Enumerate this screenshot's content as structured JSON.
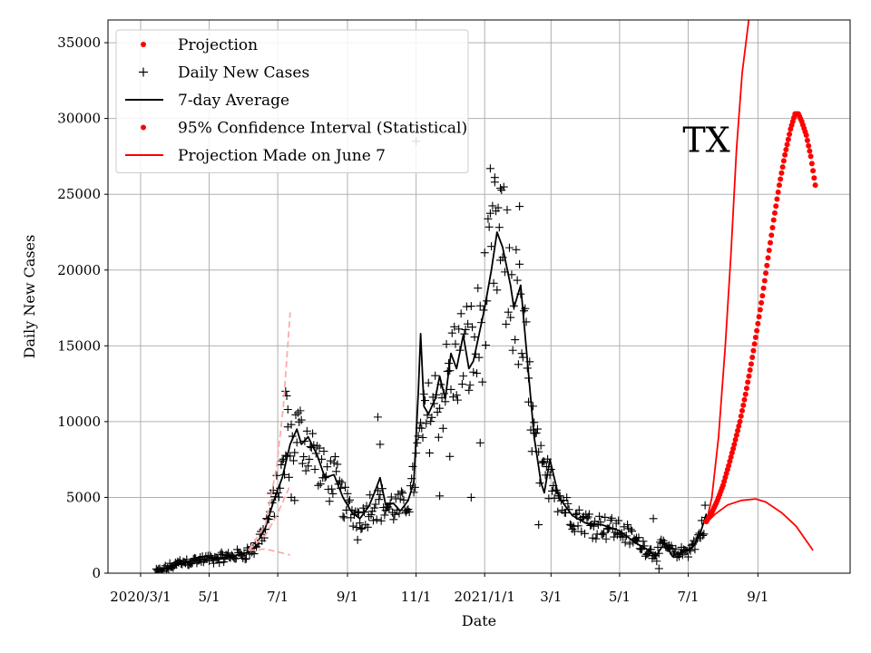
{
  "chart_data": {
    "type": "scatter",
    "xlabel": "Date",
    "ylabel": "Daily New Cases",
    "annotation": "TX",
    "xlim": [
      "2020-02-01",
      "2021-11-22"
    ],
    "ylim": [
      0,
      36500
    ],
    "grid": true,
    "legend_position": "top-left",
    "x_ticks": [
      {
        "date": "2020-03-01",
        "label": "2020/3/1"
      },
      {
        "date": "2020-05-01",
        "label": "5/1"
      },
      {
        "date": "2020-07-01",
        "label": "7/1"
      },
      {
        "date": "2020-09-01",
        "label": "9/1"
      },
      {
        "date": "2020-11-01",
        "label": "11/1"
      },
      {
        "date": "2021-01-01",
        "label": "2021/1/1"
      },
      {
        "date": "2021-03-01",
        "label": "3/1"
      },
      {
        "date": "2021-05-01",
        "label": "5/1"
      },
      {
        "date": "2021-07-01",
        "label": "7/1"
      },
      {
        "date": "2021-09-01",
        "label": "9/1"
      }
    ],
    "y_ticks": [
      0,
      5000,
      10000,
      15000,
      20000,
      25000,
      30000,
      35000
    ],
    "legend": [
      {
        "label": "Projection",
        "marker": "dot",
        "color": "#ff0000"
      },
      {
        "label": "Daily New Cases",
        "marker": "plus",
        "color": "#000000"
      },
      {
        "label": "7-day Average",
        "marker": "line",
        "color": "#000000"
      },
      {
        "label": "95% Confidence Interval (Statistical)",
        "marker": "dot",
        "color": "#ff0000"
      },
      {
        "label": "Projection Made on June 7",
        "marker": "line",
        "color": "#ff0000"
      }
    ],
    "series": [
      {
        "name": "7-day Average",
        "color": "#000000",
        "points": [
          [
            "2020-03-14",
            20
          ],
          [
            "2020-03-25",
            350
          ],
          [
            "2020-04-05",
            700
          ],
          [
            "2020-04-20",
            850
          ],
          [
            "2020-05-05",
            950
          ],
          [
            "2020-05-20",
            1100
          ],
          [
            "2020-06-01",
            1300
          ],
          [
            "2020-06-10",
            1600
          ],
          [
            "2020-06-20",
            3000
          ],
          [
            "2020-06-28",
            4900
          ],
          [
            "2020-07-05",
            6300
          ],
          [
            "2020-07-12",
            8500
          ],
          [
            "2020-07-18",
            9500
          ],
          [
            "2020-07-22",
            8500
          ],
          [
            "2020-07-28",
            9000
          ],
          [
            "2020-08-05",
            7800
          ],
          [
            "2020-08-12",
            6300
          ],
          [
            "2020-08-20",
            6500
          ],
          [
            "2020-08-28",
            5000
          ],
          [
            "2020-09-05",
            4000
          ],
          [
            "2020-09-12",
            3600
          ],
          [
            "2020-09-20",
            4400
          ],
          [
            "2020-09-26",
            5500
          ],
          [
            "2020-09-30",
            6300
          ],
          [
            "2020-10-05",
            4500
          ],
          [
            "2020-10-12",
            4600
          ],
          [
            "2020-10-18",
            4100
          ],
          [
            "2020-10-25",
            4800
          ],
          [
            "2020-10-30",
            6000
          ],
          [
            "2020-11-03",
            12000
          ],
          [
            "2020-11-05",
            15800
          ],
          [
            "2020-11-08",
            11000
          ],
          [
            "2020-11-12",
            10500
          ],
          [
            "2020-11-18",
            11500
          ],
          [
            "2020-11-22",
            13000
          ],
          [
            "2020-11-27",
            11500
          ],
          [
            "2020-12-02",
            14500
          ],
          [
            "2020-12-07",
            13500
          ],
          [
            "2020-12-13",
            15700
          ],
          [
            "2020-12-18",
            13500
          ],
          [
            "2020-12-22",
            14000
          ],
          [
            "2021-01-01",
            17500
          ],
          [
            "2021-01-07",
            20000
          ],
          [
            "2021-01-12",
            22500
          ],
          [
            "2021-01-17",
            21500
          ],
          [
            "2021-01-24",
            19000
          ],
          [
            "2021-01-27",
            17500
          ],
          [
            "2021-02-02",
            19000
          ],
          [
            "2021-02-08",
            14000
          ],
          [
            "2021-02-14",
            9000
          ],
          [
            "2021-02-20",
            6000
          ],
          [
            "2021-02-23",
            5300
          ],
          [
            "2021-02-28",
            7500
          ],
          [
            "2021-03-08",
            5000
          ],
          [
            "2021-03-20",
            3800
          ],
          [
            "2021-04-01",
            3300
          ],
          [
            "2021-04-15",
            3200
          ],
          [
            "2021-05-01",
            2800
          ],
          [
            "2021-05-15",
            2000
          ],
          [
            "2021-05-25",
            1600
          ],
          [
            "2021-06-02",
            1100
          ],
          [
            "2021-06-10",
            2000
          ],
          [
            "2021-06-17",
            1100
          ],
          [
            "2021-06-25",
            1400
          ],
          [
            "2021-07-05",
            1700
          ],
          [
            "2021-07-12",
            2700
          ],
          [
            "2021-07-17",
            3900
          ]
        ]
      },
      {
        "name": "Projection Made on June 7",
        "color": "#ff0000",
        "points": [
          [
            "2021-07-17",
            3300
          ],
          [
            "2021-07-25",
            3900
          ],
          [
            "2021-08-05",
            4500
          ],
          [
            "2021-08-17",
            4800
          ],
          [
            "2021-08-30",
            4900
          ],
          [
            "2021-09-08",
            4700
          ],
          [
            "2021-09-22",
            4000
          ],
          [
            "2021-10-05",
            3100
          ],
          [
            "2021-10-20",
            1500
          ]
        ]
      },
      {
        "name": "Projection Upper",
        "color": "#ff0000",
        "points": [
          [
            "2021-07-17",
            3300
          ],
          [
            "2021-07-22",
            5000
          ],
          [
            "2021-07-28",
            9000
          ],
          [
            "2021-08-03",
            15000
          ],
          [
            "2021-08-08",
            21000
          ],
          [
            "2021-08-13",
            28000
          ],
          [
            "2021-08-18",
            33000
          ],
          [
            "2021-08-24",
            36600
          ]
        ]
      },
      {
        "name": "Projection",
        "color": "#ff0000",
        "marker": "dot",
        "points": [
          [
            "2021-07-17",
            3400
          ],
          [
            "2021-07-22",
            4000
          ],
          [
            "2021-07-27",
            4800
          ],
          [
            "2021-08-01",
            5800
          ],
          [
            "2021-08-06",
            7100
          ],
          [
            "2021-08-11",
            8500
          ],
          [
            "2021-08-16",
            10000
          ],
          [
            "2021-08-21",
            11800
          ],
          [
            "2021-08-26",
            13800
          ],
          [
            "2021-08-31",
            16000
          ],
          [
            "2021-09-05",
            18300
          ],
          [
            "2021-09-10",
            20800
          ],
          [
            "2021-09-15",
            23300
          ],
          [
            "2021-09-20",
            25600
          ],
          [
            "2021-09-25",
            27600
          ],
          [
            "2021-09-30",
            29300
          ],
          [
            "2021-10-04",
            30300
          ],
          [
            "2021-10-07",
            30300
          ],
          [
            "2021-10-10",
            29800
          ],
          [
            "2021-10-14",
            28900
          ],
          [
            "2021-10-18",
            27500
          ],
          [
            "2021-10-22",
            25600
          ]
        ]
      },
      {
        "name": "Early Projection Upper",
        "color": "#ffaaaa",
        "points": [
          [
            "2020-06-05",
            1500
          ],
          [
            "2020-06-20",
            3200
          ],
          [
            "2020-06-30",
            7000
          ],
          [
            "2020-07-06",
            11000
          ],
          [
            "2020-07-12",
            17200
          ]
        ]
      },
      {
        "name": "Early Projection",
        "color": "#ffaaaa",
        "points": [
          [
            "2020-06-05",
            1500
          ],
          [
            "2020-06-20",
            2500
          ],
          [
            "2020-06-30",
            3800
          ],
          [
            "2020-07-12",
            5800
          ]
        ]
      },
      {
        "name": "Early Projection Lower",
        "color": "#ffaaaa",
        "points": [
          [
            "2020-06-05",
            1500
          ],
          [
            "2020-06-20",
            1600
          ],
          [
            "2020-07-12",
            1200
          ]
        ]
      }
    ],
    "daily_new_cases": {
      "anchors": [
        [
          "2020-03-14",
          50
        ],
        [
          "2020-03-25",
          350
        ],
        [
          "2020-04-05",
          700
        ],
        [
          "2020-04-20",
          850
        ],
        [
          "2020-05-05",
          950
        ],
        [
          "2020-05-20",
          1100
        ],
        [
          "2020-06-01",
          1300
        ],
        [
          "2020-06-10",
          1600
        ],
        [
          "2020-06-20",
          3000
        ],
        [
          "2020-06-28",
          4900
        ],
        [
          "2020-07-05",
          6500
        ],
        [
          "2020-07-12",
          8500
        ],
        [
          "2020-07-18",
          9300
        ],
        [
          "2020-07-28",
          8600
        ],
        [
          "2020-08-05",
          7400
        ],
        [
          "2020-08-12",
          6300
        ],
        [
          "2020-08-20",
          6300
        ],
        [
          "2020-08-28",
          4800
        ],
        [
          "2020-09-05",
          3900
        ],
        [
          "2020-09-15",
          3800
        ],
        [
          "2020-09-25",
          4800
        ],
        [
          "2020-10-05",
          4400
        ],
        [
          "2020-10-18",
          4200
        ],
        [
          "2020-10-28",
          5300
        ],
        [
          "2020-11-05",
          9000
        ],
        [
          "2020-11-15",
          11000
        ],
        [
          "2020-11-25",
          12000
        ],
        [
          "2020-12-05",
          14000
        ],
        [
          "2020-12-15",
          14500
        ],
        [
          "2020-12-25",
          15000
        ],
        [
          "2021-01-05",
          19000
        ],
        [
          "2021-01-12",
          22000
        ],
        [
          "2021-01-20",
          20000
        ],
        [
          "2021-01-30",
          17500
        ],
        [
          "2021-02-06",
          14500
        ],
        [
          "2021-02-14",
          9000
        ],
        [
          "2021-02-22",
          6000
        ],
        [
          "2021-03-01",
          6800
        ],
        [
          "2021-03-10",
          4800
        ],
        [
          "2021-03-20",
          3800
        ],
        [
          "2021-04-05",
          3300
        ],
        [
          "2021-04-20",
          3100
        ],
        [
          "2021-05-05",
          2700
        ],
        [
          "2021-05-20",
          1900
        ],
        [
          "2021-06-02",
          1200
        ],
        [
          "2021-06-10",
          1900
        ],
        [
          "2021-06-20",
          1200
        ],
        [
          "2021-06-30",
          1500
        ],
        [
          "2021-07-08",
          2000
        ],
        [
          "2021-07-17",
          3800
        ]
      ],
      "outliers": [
        [
          "2020-07-08",
          12000
        ],
        [
          "2020-07-09",
          11700
        ],
        [
          "2020-07-10",
          10800
        ],
        [
          "2020-07-13",
          5000
        ],
        [
          "2020-07-16",
          4800
        ],
        [
          "2020-09-28",
          10300
        ],
        [
          "2020-09-30",
          8500
        ],
        [
          "2020-09-10",
          2200
        ],
        [
          "2020-11-01",
          28500
        ],
        [
          "2020-11-22",
          5100
        ],
        [
          "2020-12-01",
          7700
        ],
        [
          "2020-12-20",
          5000
        ],
        [
          "2020-12-28",
          8600
        ],
        [
          "2021-01-06",
          26700
        ],
        [
          "2021-01-10",
          25800
        ],
        [
          "2021-01-15",
          25400
        ],
        [
          "2021-02-01",
          24200
        ],
        [
          "2021-02-09",
          11300
        ],
        [
          "2021-02-18",
          3200
        ],
        [
          "2021-05-31",
          3600
        ],
        [
          "2021-06-05",
          300
        ]
      ]
    }
  }
}
